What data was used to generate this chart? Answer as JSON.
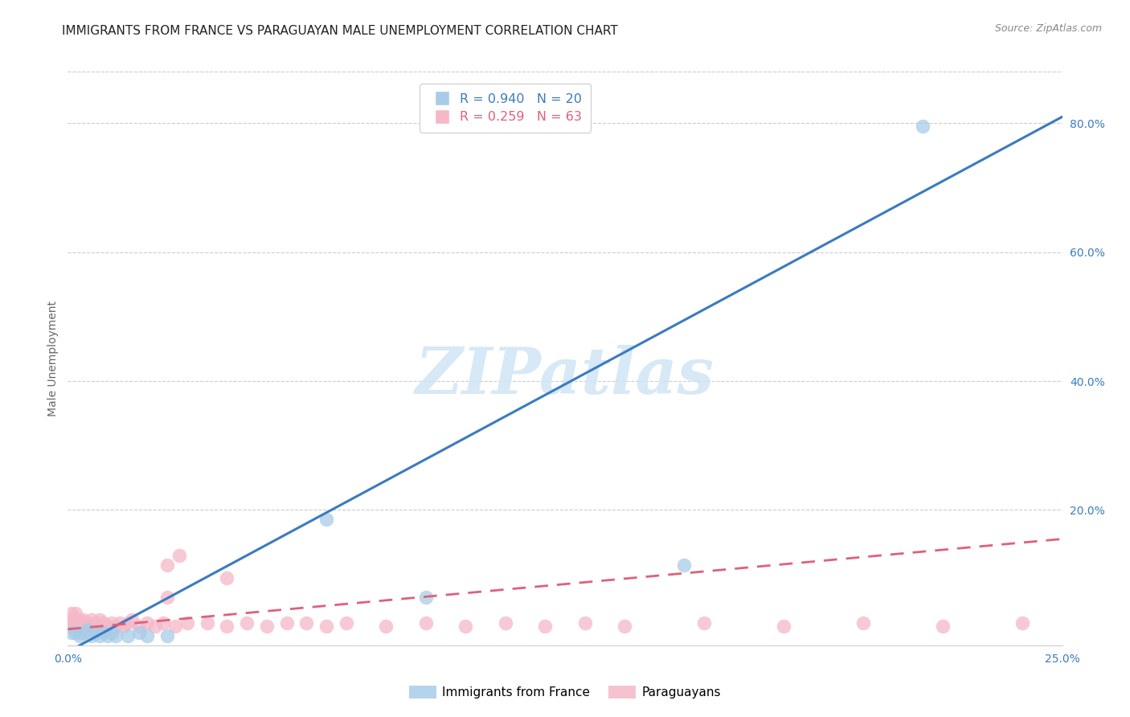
{
  "title": "IMMIGRANTS FROM FRANCE VS PARAGUAYAN MALE UNEMPLOYMENT CORRELATION CHART",
  "source": "Source: ZipAtlas.com",
  "ylabel": "Male Unemployment",
  "xlim": [
    0.0,
    0.25
  ],
  "ylim": [
    -0.01,
    0.88
  ],
  "blue_R": "0.940",
  "blue_N": "20",
  "pink_R": "0.259",
  "pink_N": "63",
  "blue_color": "#a8cce8",
  "pink_color": "#f5b8c8",
  "blue_line_color": "#3a7bbf",
  "pink_line_color": "#e0607a",
  "watermark_color": "#d0e4f5",
  "grid_color": "#cccccc",
  "background_color": "#ffffff",
  "title_fontsize": 11,
  "label_fontsize": 10,
  "tick_fontsize": 10,
  "blue_points_x": [
    0.001,
    0.002,
    0.003,
    0.004,
    0.005,
    0.006,
    0.007,
    0.008,
    0.009,
    0.01,
    0.011,
    0.012,
    0.015,
    0.018,
    0.02,
    0.025,
    0.065,
    0.09,
    0.155,
    0.215
  ],
  "blue_points_y": [
    0.01,
    0.01,
    0.005,
    0.01,
    0.015,
    0.005,
    0.01,
    0.005,
    0.01,
    0.005,
    0.01,
    0.005,
    0.005,
    0.01,
    0.005,
    0.005,
    0.185,
    0.065,
    0.115,
    0.795
  ],
  "pink_points_x": [
    0.0005,
    0.001,
    0.001,
    0.0015,
    0.002,
    0.002,
    0.002,
    0.0025,
    0.003,
    0.003,
    0.003,
    0.0035,
    0.004,
    0.004,
    0.004,
    0.0045,
    0.005,
    0.005,
    0.006,
    0.006,
    0.007,
    0.007,
    0.008,
    0.008,
    0.009,
    0.009,
    0.01,
    0.011,
    0.012,
    0.013,
    0.014,
    0.015,
    0.016,
    0.018,
    0.02,
    0.022,
    0.024,
    0.025,
    0.027,
    0.028,
    0.03,
    0.035,
    0.04,
    0.045,
    0.05,
    0.055,
    0.06,
    0.065,
    0.07,
    0.08,
    0.09,
    0.1,
    0.11,
    0.12,
    0.13,
    0.14,
    0.16,
    0.18,
    0.2,
    0.22,
    0.24,
    0.025,
    0.04
  ],
  "pink_points_y": [
    0.02,
    0.03,
    0.04,
    0.025,
    0.02,
    0.03,
    0.04,
    0.02,
    0.01,
    0.02,
    0.03,
    0.025,
    0.015,
    0.02,
    0.03,
    0.025,
    0.015,
    0.025,
    0.02,
    0.03,
    0.015,
    0.025,
    0.02,
    0.03,
    0.015,
    0.025,
    0.02,
    0.025,
    0.02,
    0.025,
    0.02,
    0.025,
    0.03,
    0.02,
    0.025,
    0.02,
    0.025,
    0.065,
    0.02,
    0.13,
    0.025,
    0.025,
    0.02,
    0.025,
    0.02,
    0.025,
    0.025,
    0.02,
    0.025,
    0.02,
    0.025,
    0.02,
    0.025,
    0.02,
    0.025,
    0.02,
    0.025,
    0.02,
    0.025,
    0.02,
    0.025,
    0.115,
    0.095
  ],
  "blue_line_x0": 0.0,
  "blue_line_y0": -0.02,
  "blue_line_x1": 0.25,
  "blue_line_y1": 0.81,
  "pink_line_x0": 0.0,
  "pink_line_y0": 0.015,
  "pink_line_x1": 0.25,
  "pink_line_y1": 0.155
}
